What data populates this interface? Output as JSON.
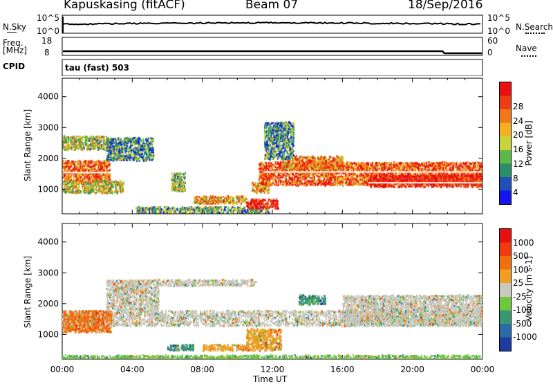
{
  "header": {
    "station": "Kapuskasing (fitACF)",
    "beam": "Beam 07",
    "date": "18/Sep/2016"
  },
  "summary": {
    "nsky_label": "N.Sky",
    "nsky_top_tick": "10^5",
    "nsky_bottom_tick": "10^0",
    "nsearch_label": "N.Search",
    "nsearch_top_tick": "10^5",
    "nsearch_bottom_tick": "10^0",
    "freq_label": "Freq.",
    "freq_unit": "[MHz]",
    "freq_top_tick": "18",
    "freq_bottom_tick": "8",
    "nave_label": "Nave",
    "nave_top_tick": "60",
    "nave_bottom_tick": "0",
    "cpid_label": "CPID",
    "cpid_value": "tau (fast) 503"
  },
  "chart_data": [
    {
      "type": "heatmap",
      "panel": "power",
      "ylabel": "Slant Range [km]",
      "xlabel": "Time UT",
      "ylim": [
        200,
        4600
      ],
      "xlim": [
        0,
        24
      ],
      "y_ticks": [
        1000,
        2000,
        3000,
        4000
      ],
      "x_tick_labels": [
        "00:00",
        "04:00",
        "08:00",
        "12:00",
        "16:00",
        "20:00",
        "00:00"
      ],
      "colorbar": {
        "label": "Power [dB]",
        "ticks": [
          "4",
          "8",
          "12",
          "16",
          "20",
          "24",
          "28"
        ],
        "colors": [
          "#1414f0",
          "#2050b8",
          "#2a8f6a",
          "#5db84a",
          "#c8d23a",
          "#f0b020",
          "#f07818",
          "#f03c14",
          "#e81010"
        ]
      },
      "regions": [
        {
          "t0": 0.0,
          "t1": 2.7,
          "r0": 1250,
          "r1": 1950,
          "level": 0.78
        },
        {
          "t0": 0.0,
          "t1": 3.5,
          "r0": 900,
          "r1": 1300,
          "level": 0.5
        },
        {
          "t0": 0.0,
          "t1": 2.5,
          "r0": 2300,
          "r1": 2750,
          "level": 0.45
        },
        {
          "t0": 2.5,
          "t1": 5.2,
          "r0": 1950,
          "r1": 2700,
          "level": 0.3
        },
        {
          "t0": 6.2,
          "t1": 7.0,
          "r0": 950,
          "r1": 1550,
          "level": 0.4
        },
        {
          "t0": 4.2,
          "t1": 11.8,
          "r0": 250,
          "r1": 450,
          "level": 0.35
        },
        {
          "t0": 7.5,
          "t1": 10.5,
          "r0": 550,
          "r1": 800,
          "level": 0.62
        },
        {
          "t0": 10.5,
          "t1": 12.3,
          "r0": 400,
          "r1": 700,
          "level": 0.95
        },
        {
          "t0": 10.8,
          "t1": 11.8,
          "r0": 900,
          "r1": 1250,
          "level": 0.7
        },
        {
          "t0": 11.2,
          "t1": 24.0,
          "r0": 1150,
          "r1": 1900,
          "level": 0.8
        },
        {
          "t0": 12.5,
          "t1": 16.0,
          "r0": 1600,
          "r1": 2100,
          "level": 0.7
        },
        {
          "t0": 17.5,
          "t1": 24.0,
          "r0": 1100,
          "r1": 1500,
          "level": 0.95
        },
        {
          "t0": 11.5,
          "t1": 13.2,
          "r0": 2000,
          "r1": 3200,
          "level": 0.3
        }
      ]
    },
    {
      "type": "heatmap",
      "panel": "velocity",
      "ylabel": "Slant Range [km]",
      "xlabel": "Time UT",
      "ylim": [
        200,
        4600
      ],
      "xlim": [
        0,
        24
      ],
      "y_ticks": [
        1000,
        2000,
        3000,
        4000
      ],
      "x_tick_labels": [
        "00:00",
        "04:00",
        "08:00",
        "12:00",
        "16:00",
        "20:00",
        "00:00"
      ],
      "colorbar": {
        "label": "Velocity [m s-1]",
        "ticks": [
          "1000",
          "500",
          "100",
          "25",
          "-25",
          "-100",
          "-500",
          "-1000"
        ],
        "colors": [
          "#1e3ca0",
          "#2d6aa8",
          "#3a9870",
          "#6ec83c",
          "#c8c8c0",
          "#f0a020",
          "#f07010",
          "#f03a10",
          "#e81010"
        ]
      },
      "regions": [
        {
          "t0": 0.0,
          "t1": 24.0,
          "r0": 1300,
          "r1": 1800,
          "level": 0.5
        },
        {
          "t0": 0.0,
          "t1": 2.8,
          "r0": 1100,
          "r1": 1800,
          "level": 0.7
        },
        {
          "t0": 2.5,
          "t1": 5.5,
          "r0": 1800,
          "r1": 2800,
          "level": 0.5
        },
        {
          "t0": 5.5,
          "t1": 11.0,
          "r0": 2600,
          "r1": 2800,
          "level": 0.5
        },
        {
          "t0": 8.0,
          "t1": 10.5,
          "r0": 500,
          "r1": 700,
          "level": 0.65
        },
        {
          "t0": 6.0,
          "t1": 7.5,
          "r0": 500,
          "r1": 700,
          "level": 0.3
        },
        {
          "t0": 10.5,
          "t1": 12.5,
          "r0": 500,
          "r1": 1200,
          "level": 0.6
        },
        {
          "t0": 16.0,
          "t1": 24.0,
          "r0": 1300,
          "r1": 2300,
          "level": 0.5
        },
        {
          "t0": 13.5,
          "t1": 15.0,
          "r0": 2000,
          "r1": 2300,
          "level": 0.3
        },
        {
          "t0": 0.0,
          "t1": 24.0,
          "r0": 200,
          "r1": 350,
          "level": 0.4
        }
      ]
    }
  ]
}
